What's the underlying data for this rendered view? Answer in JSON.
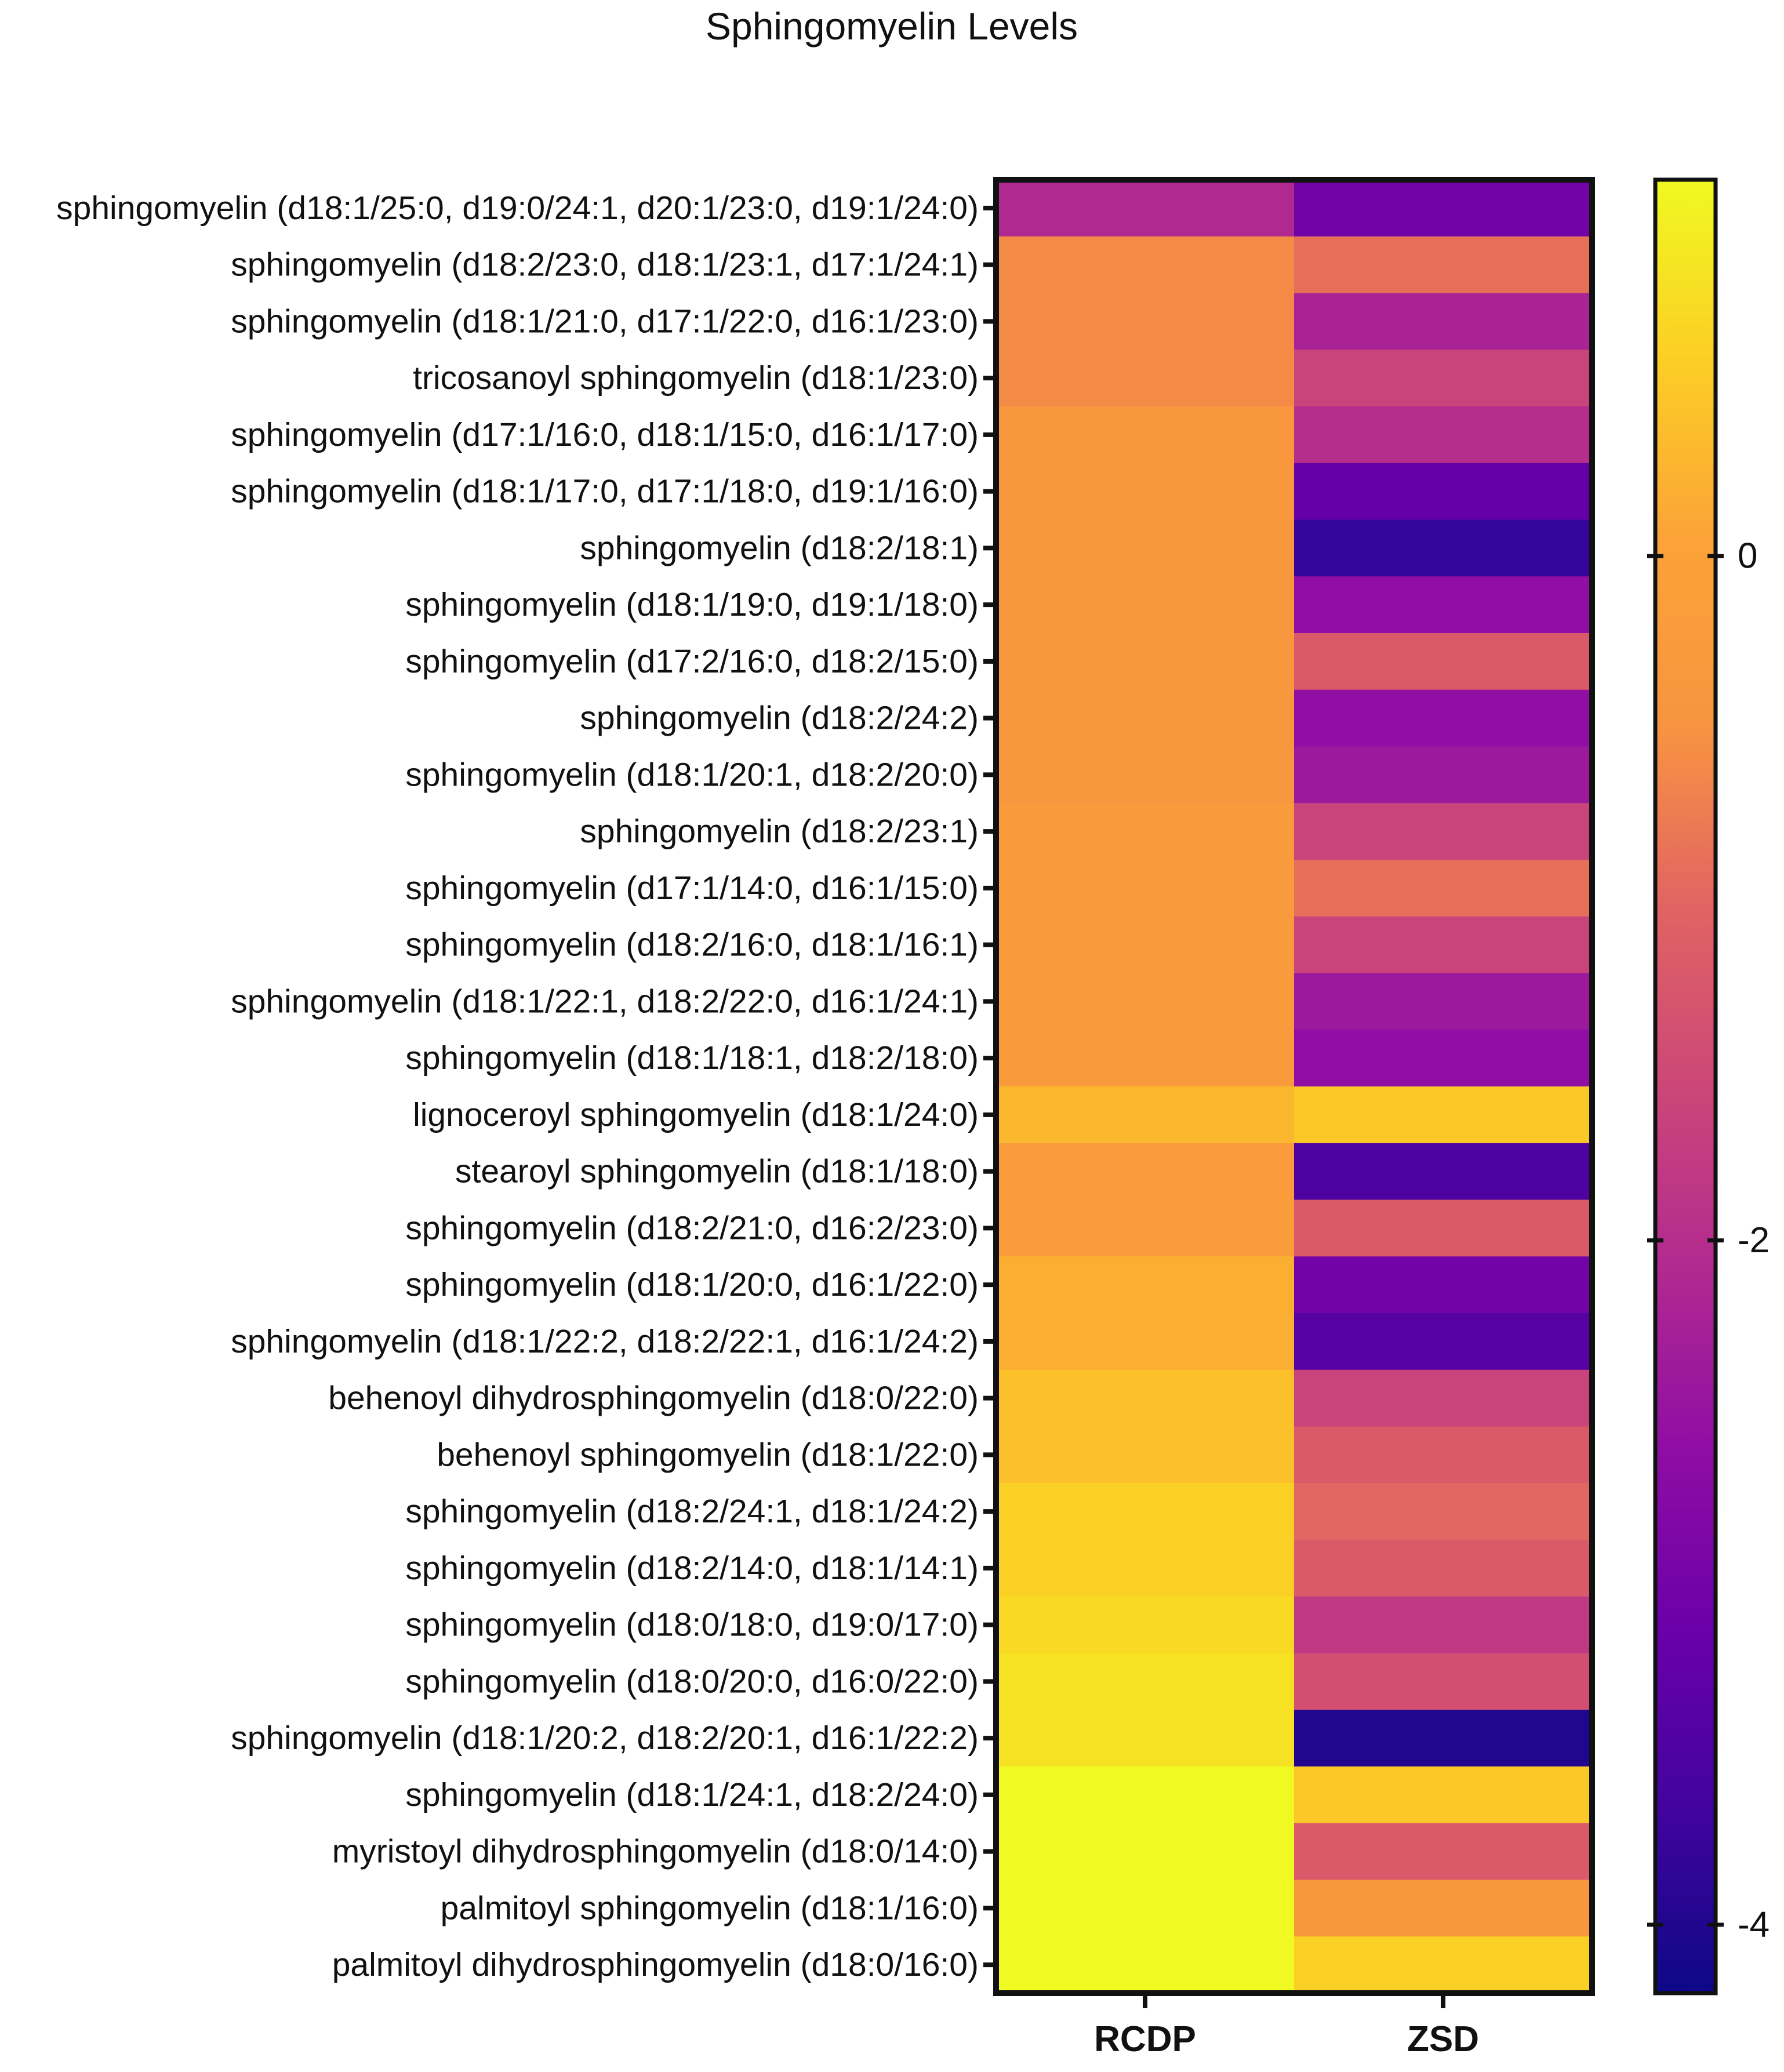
{
  "chart_data": {
    "type": "heatmap",
    "title": "Sphingomyelin Levels",
    "xlabel": "",
    "ylabel": "",
    "columns": [
      "RCDP",
      "ZSD"
    ],
    "rows": [
      "sphingomyelin (d18:1/25:0, d19:0/24:1, d20:1/23:0, d19:1/24:0)",
      "sphingomyelin (d18:2/23:0, d18:1/23:1, d17:1/24:1)",
      "sphingomyelin (d18:1/21:0, d17:1/22:0, d16:1/23:0)",
      "tricosanoyl sphingomyelin (d18:1/23:0)",
      "sphingomyelin (d17:1/16:0, d18:1/15:0, d16:1/17:0)",
      "sphingomyelin (d18:1/17:0, d17:1/18:0, d19:1/16:0)",
      "sphingomyelin (d18:2/18:1)",
      "sphingomyelin (d18:1/19:0, d19:1/18:0)",
      "sphingomyelin (d17:2/16:0, d18:2/15:0)",
      "sphingomyelin (d18:2/24:2)",
      "sphingomyelin (d18:1/20:1, d18:2/20:0)",
      "sphingomyelin (d18:2/23:1)",
      "sphingomyelin (d17:1/14:0, d16:1/15:0)",
      "sphingomyelin (d18:2/16:0, d18:1/16:1)",
      "sphingomyelin (d18:1/22:1, d18:2/22:0, d16:1/24:1)",
      "sphingomyelin (d18:1/18:1, d18:2/18:0)",
      "lignoceroyl sphingomyelin (d18:1/24:0)",
      "stearoyl sphingomyelin (d18:1/18:0)",
      "sphingomyelin (d18:2/21:0, d16:2/23:0)",
      "sphingomyelin (d18:1/20:0, d16:1/22:0)",
      "sphingomyelin (d18:1/22:2, d18:2/22:1, d16:1/24:2)",
      "behenoyl dihydrosphingomyelin (d18:0/22:0)",
      "behenoyl sphingomyelin (d18:1/22:0)",
      "sphingomyelin (d18:2/24:1, d18:1/24:2)",
      "sphingomyelin (d18:2/14:0, d18:1/14:1)",
      "sphingomyelin (d18:0/18:0, d19:0/17:0)",
      "sphingomyelin (d18:0/20:0, d16:0/22:0)",
      "sphingomyelin (d18:1/20:2, d18:2/20:1, d16:1/22:2)",
      "sphingomyelin (d18:1/24:1, d18:2/24:0)",
      "myristoyl dihydrosphingomyelin (d18:0/14:0)",
      "palmitoyl sphingomyelin (d18:1/16:0)",
      "palmitoyl dihydrosphingomyelin (d18:0/16:0)"
    ],
    "values": [
      [
        -2.1,
        -3.0
      ],
      [
        -0.6,
        -0.9
      ],
      [
        -0.6,
        -2.2
      ],
      [
        -0.6,
        -1.6
      ],
      [
        -0.4,
        -2.0
      ],
      [
        -0.4,
        -3.2
      ],
      [
        -0.4,
        -3.8
      ],
      [
        -0.4,
        -2.6
      ],
      [
        -0.4,
        -1.2
      ],
      [
        -0.4,
        -2.6
      ],
      [
        -0.4,
        -2.4
      ],
      [
        -0.3,
        -1.6
      ],
      [
        -0.3,
        -0.9
      ],
      [
        -0.3,
        -1.6
      ],
      [
        -0.3,
        -2.4
      ],
      [
        -0.3,
        -2.6
      ],
      [
        0.3,
        0.5
      ],
      [
        -0.2,
        -3.5
      ],
      [
        -0.2,
        -1.2
      ],
      [
        0.2,
        -3.0
      ],
      [
        0.2,
        -3.4
      ],
      [
        0.4,
        -1.6
      ],
      [
        0.4,
        -1.2
      ],
      [
        0.6,
        -1.0
      ],
      [
        0.6,
        -1.2
      ],
      [
        0.7,
        -1.8
      ],
      [
        0.8,
        -1.4
      ],
      [
        0.8,
        -4.0
      ],
      [
        1.3,
        0.5
      ],
      [
        1.4,
        -1.2
      ],
      [
        1.5,
        -0.4
      ],
      [
        1.7,
        0.6
      ]
    ],
    "colorbar": {
      "range": [
        -4.2,
        1.1
      ],
      "ticks": [
        0,
        -2,
        -4
      ],
      "colormap": "plasma"
    }
  }
}
